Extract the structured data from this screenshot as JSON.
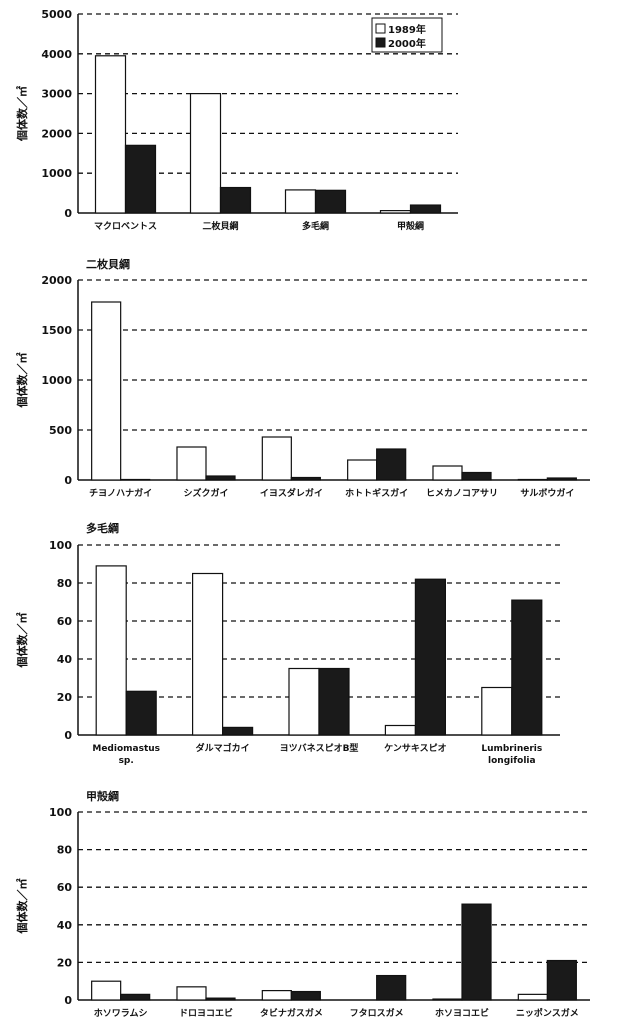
{
  "chart_data": [
    {
      "type": "bar",
      "title": "",
      "ylabel": "個体数／㎡",
      "ylim": [
        0,
        5000
      ],
      "yticks": [
        0,
        1000,
        2000,
        3000,
        4000,
        5000
      ],
      "grid": true,
      "legend": "top-right",
      "categories": [
        [
          "マクロベントス"
        ],
        [
          "二枚貝綱"
        ],
        [
          "多毛綱"
        ],
        [
          "甲殻綱"
        ]
      ],
      "series": [
        {
          "name": "1989年",
          "values": [
            3950,
            3000,
            580,
            60
          ]
        },
        {
          "name": "2000年",
          "values": [
            1700,
            640,
            570,
            200
          ]
        }
      ]
    },
    {
      "type": "bar",
      "title": "二枚貝綱",
      "ylabel": "個体数／㎡",
      "ylim": [
        0,
        2000
      ],
      "yticks": [
        0,
        500,
        1000,
        1500,
        2000
      ],
      "grid": true,
      "categories": [
        [
          "チヨノハナガイ"
        ],
        [
          "シズクガイ"
        ],
        [
          "イヨスダレガイ"
        ],
        [
          "ホトトギスガイ"
        ],
        [
          "ヒメカノコアサリ"
        ],
        [
          "サルボウガイ"
        ]
      ],
      "series": [
        {
          "name": "1989年",
          "values": [
            1780,
            330,
            430,
            200,
            140,
            5
          ]
        },
        {
          "name": "2000年",
          "values": [
            5,
            40,
            25,
            310,
            75,
            20
          ]
        }
      ]
    },
    {
      "type": "bar",
      "title": "多毛綱",
      "ylabel": "個体数／㎡",
      "ylim": [
        0,
        100
      ],
      "yticks": [
        0,
        20,
        40,
        60,
        80,
        100
      ],
      "grid": true,
      "categories": [
        [
          "Mediomastus",
          "sp."
        ],
        [
          "ダルマゴカイ"
        ],
        [
          "ヨツバネスピオB型"
        ],
        [
          "ケンサキスピオ"
        ],
        [
          "Lumbrineris",
          "longifolia"
        ]
      ],
      "series": [
        {
          "name": "1989年",
          "values": [
            89,
            85,
            35,
            5,
            25
          ]
        },
        {
          "name": "2000年",
          "values": [
            23,
            4,
            35,
            82,
            71
          ]
        }
      ]
    },
    {
      "type": "bar",
      "title": "甲殻綱",
      "ylabel": "個体数／㎡",
      "ylim": [
        0,
        100
      ],
      "yticks": [
        0,
        20,
        40,
        60,
        80,
        100
      ],
      "grid": true,
      "categories": [
        [
          "ホソワラムシ"
        ],
        [
          "ドロヨコエビ"
        ],
        [
          "タビナガスガメ"
        ],
        [
          "フタロスガメ"
        ],
        [
          "ホソヨコエビ"
        ],
        [
          "ニッポンスガメ"
        ]
      ],
      "series": [
        {
          "name": "1989年",
          "values": [
            10,
            7,
            5,
            0,
            0.5,
            3
          ]
        },
        {
          "name": "2000年",
          "values": [
            3,
            1,
            4.5,
            13,
            51,
            21
          ]
        }
      ]
    }
  ],
  "colors": {
    "series_1989": "#ffffff",
    "series_2000": "#1a1a1a",
    "grid": "#111111"
  }
}
